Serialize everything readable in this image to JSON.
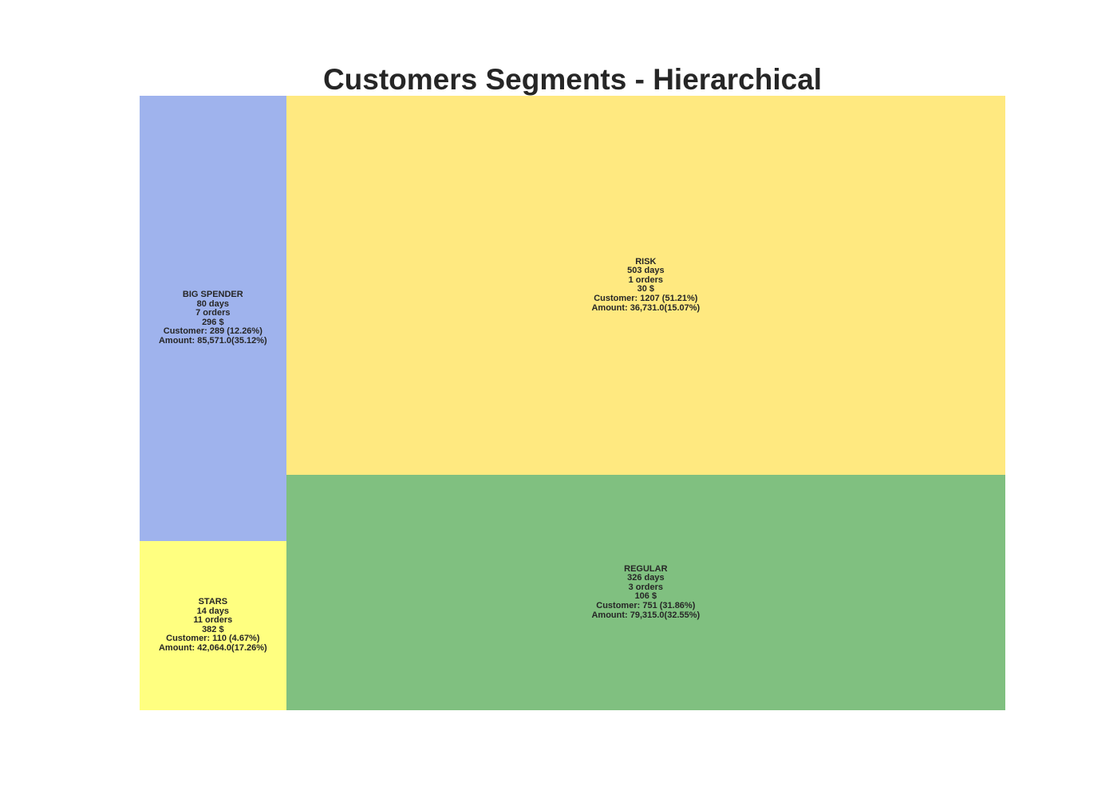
{
  "chart_data": {
    "type": "treemap",
    "title": "Customers Segments - Hierarchical",
    "segments": [
      {
        "name": "BIG SPENDER",
        "recency": "80 days",
        "frequency": "7 orders",
        "monetary": "296 $",
        "customers_text": "Customer: 289 (12.26%)",
        "amount_text": "Amount: 85,571.0(35.12%)",
        "customers": 289,
        "customers_pct": 12.26,
        "amount": 85571.0,
        "amount_pct": 35.12,
        "color": "#9fb3ed"
      },
      {
        "name": "STARS",
        "recency": "14 days",
        "frequency": "11 orders",
        "monetary": "382 $",
        "customers_text": "Customer: 110 (4.67%)",
        "amount_text": "Amount: 42,064.0(17.26%)",
        "customers": 110,
        "customers_pct": 4.67,
        "amount": 42064.0,
        "amount_pct": 17.26,
        "color": "#ffff80"
      },
      {
        "name": "RISK",
        "recency": "503 days",
        "frequency": "1 orders",
        "monetary": "30 $",
        "customers_text": "Customer: 1207 (51.21%)",
        "amount_text": "Amount: 36,731.0(15.07%)",
        "customers": 1207,
        "customers_pct": 51.21,
        "amount": 36731.0,
        "amount_pct": 15.07,
        "color": "#ffe980"
      },
      {
        "name": "REGULAR",
        "recency": "326 days",
        "frequency": "3 orders",
        "monetary": "106 $",
        "customers_text": "Customer: 751 (31.86%)",
        "amount_text": "Amount: 79,315.0(32.55%)",
        "customers": 751,
        "customers_pct": 31.86,
        "amount": 79315.0,
        "amount_pct": 32.55,
        "color": "#80c080"
      }
    ]
  }
}
